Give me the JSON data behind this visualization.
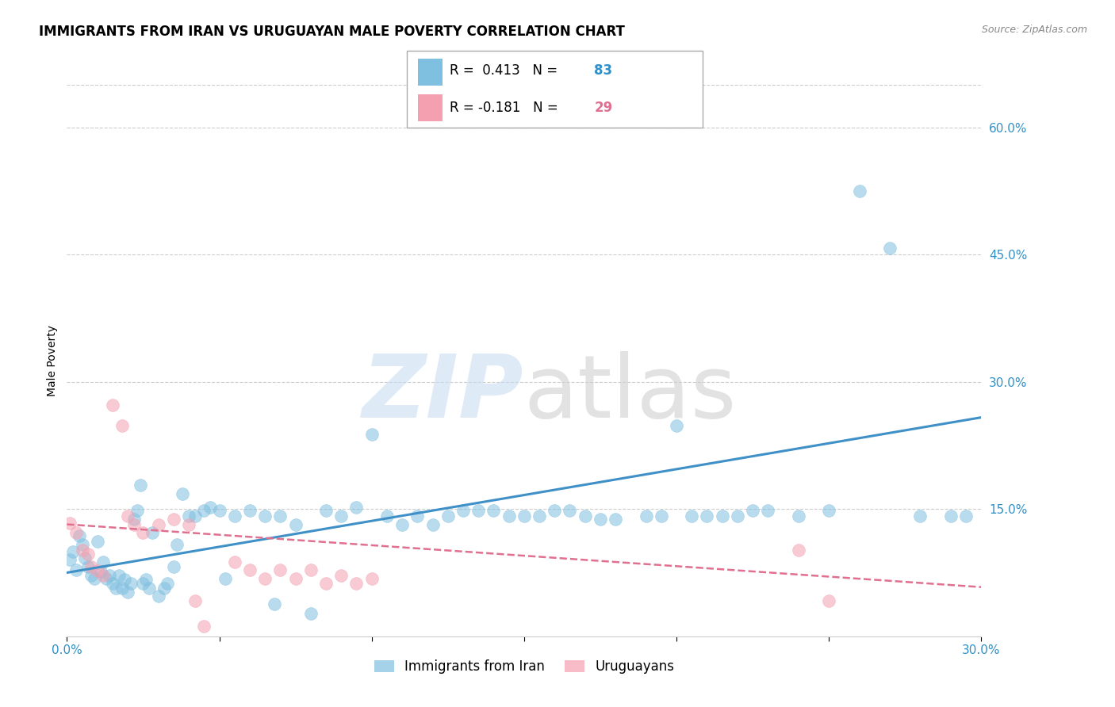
{
  "title": "IMMIGRANTS FROM IRAN VS URUGUAYAN MALE POVERTY CORRELATION CHART",
  "source": "Source: ZipAtlas.com",
  "ylabel": "Male Poverty",
  "xlim": [
    0.0,
    0.3
  ],
  "ylim": [
    0.0,
    0.65
  ],
  "xticks": [
    0.0,
    0.05,
    0.1,
    0.15,
    0.2,
    0.25,
    0.3
  ],
  "xtick_labels": [
    "0.0%",
    "",
    "",
    "",
    "",
    "",
    "30.0%"
  ],
  "yticks_right": [
    0.0,
    0.15,
    0.3,
    0.45,
    0.6
  ],
  "ytick_labels_right": [
    "",
    "15.0%",
    "30.0%",
    "45.0%",
    "60.0%"
  ],
  "blue_color": "#7fbfdf",
  "pink_color": "#f4a0b0",
  "blue_line_color": "#4090c8",
  "pink_line_color": "#e07090",
  "grid_color": "#cccccc",
  "blue_scatter": [
    [
      0.001,
      0.09
    ],
    [
      0.002,
      0.1
    ],
    [
      0.003,
      0.078
    ],
    [
      0.004,
      0.118
    ],
    [
      0.005,
      0.108
    ],
    [
      0.006,
      0.092
    ],
    [
      0.007,
      0.082
    ],
    [
      0.008,
      0.072
    ],
    [
      0.009,
      0.068
    ],
    [
      0.01,
      0.112
    ],
    [
      0.011,
      0.076
    ],
    [
      0.012,
      0.088
    ],
    [
      0.013,
      0.068
    ],
    [
      0.014,
      0.072
    ],
    [
      0.015,
      0.062
    ],
    [
      0.016,
      0.057
    ],
    [
      0.017,
      0.072
    ],
    [
      0.018,
      0.057
    ],
    [
      0.019,
      0.067
    ],
    [
      0.02,
      0.052
    ],
    [
      0.021,
      0.062
    ],
    [
      0.022,
      0.138
    ],
    [
      0.023,
      0.148
    ],
    [
      0.024,
      0.178
    ],
    [
      0.025,
      0.062
    ],
    [
      0.026,
      0.067
    ],
    [
      0.027,
      0.057
    ],
    [
      0.028,
      0.122
    ],
    [
      0.03,
      0.047
    ],
    [
      0.032,
      0.057
    ],
    [
      0.033,
      0.062
    ],
    [
      0.035,
      0.082
    ],
    [
      0.036,
      0.108
    ],
    [
      0.038,
      0.168
    ],
    [
      0.04,
      0.142
    ],
    [
      0.042,
      0.142
    ],
    [
      0.045,
      0.148
    ],
    [
      0.047,
      0.152
    ],
    [
      0.05,
      0.148
    ],
    [
      0.052,
      0.068
    ],
    [
      0.055,
      0.142
    ],
    [
      0.06,
      0.148
    ],
    [
      0.065,
      0.142
    ],
    [
      0.068,
      0.038
    ],
    [
      0.07,
      0.142
    ],
    [
      0.075,
      0.132
    ],
    [
      0.08,
      0.027
    ],
    [
      0.085,
      0.148
    ],
    [
      0.09,
      0.142
    ],
    [
      0.095,
      0.152
    ],
    [
      0.1,
      0.238
    ],
    [
      0.105,
      0.142
    ],
    [
      0.11,
      0.132
    ],
    [
      0.115,
      0.142
    ],
    [
      0.12,
      0.132
    ],
    [
      0.125,
      0.142
    ],
    [
      0.13,
      0.148
    ],
    [
      0.135,
      0.148
    ],
    [
      0.14,
      0.148
    ],
    [
      0.145,
      0.142
    ],
    [
      0.15,
      0.142
    ],
    [
      0.155,
      0.142
    ],
    [
      0.16,
      0.148
    ],
    [
      0.165,
      0.148
    ],
    [
      0.17,
      0.142
    ],
    [
      0.175,
      0.138
    ],
    [
      0.18,
      0.138
    ],
    [
      0.19,
      0.142
    ],
    [
      0.195,
      0.142
    ],
    [
      0.2,
      0.248
    ],
    [
      0.205,
      0.142
    ],
    [
      0.21,
      0.142
    ],
    [
      0.215,
      0.142
    ],
    [
      0.22,
      0.142
    ],
    [
      0.225,
      0.148
    ],
    [
      0.23,
      0.148
    ],
    [
      0.24,
      0.142
    ],
    [
      0.25,
      0.148
    ],
    [
      0.26,
      0.525
    ],
    [
      0.27,
      0.458
    ],
    [
      0.28,
      0.142
    ],
    [
      0.29,
      0.142
    ],
    [
      0.295,
      0.142
    ]
  ],
  "pink_scatter": [
    [
      0.001,
      0.133
    ],
    [
      0.003,
      0.122
    ],
    [
      0.005,
      0.102
    ],
    [
      0.007,
      0.097
    ],
    [
      0.008,
      0.082
    ],
    [
      0.01,
      0.077
    ],
    [
      0.012,
      0.072
    ],
    [
      0.015,
      0.273
    ],
    [
      0.018,
      0.248
    ],
    [
      0.02,
      0.142
    ],
    [
      0.022,
      0.132
    ],
    [
      0.025,
      0.122
    ],
    [
      0.03,
      0.132
    ],
    [
      0.035,
      0.138
    ],
    [
      0.04,
      0.132
    ],
    [
      0.042,
      0.042
    ],
    [
      0.045,
      0.012
    ],
    [
      0.055,
      0.088
    ],
    [
      0.06,
      0.078
    ],
    [
      0.065,
      0.068
    ],
    [
      0.07,
      0.078
    ],
    [
      0.075,
      0.068
    ],
    [
      0.08,
      0.078
    ],
    [
      0.085,
      0.062
    ],
    [
      0.09,
      0.072
    ],
    [
      0.095,
      0.062
    ],
    [
      0.1,
      0.068
    ],
    [
      0.24,
      0.102
    ],
    [
      0.25,
      0.042
    ]
  ],
  "blue_line": [
    [
      0.0,
      0.075
    ],
    [
      0.3,
      0.258
    ]
  ],
  "pink_line": [
    [
      0.0,
      0.132
    ],
    [
      0.3,
      0.058
    ]
  ],
  "title_fontsize": 12,
  "axis_label_fontsize": 10,
  "tick_fontsize": 11,
  "legend_r1_black": "R =  0.413   N = ",
  "legend_r1_colored": "83",
  "legend_r2_black": "R = -0.181   N = ",
  "legend_r2_colored": "29",
  "legend_n_color_blue": "#3090c8",
  "legend_n_color_pink": "#e07090",
  "bottom_legend_1": "Immigrants from Iran",
  "bottom_legend_2": "Uruguayans"
}
